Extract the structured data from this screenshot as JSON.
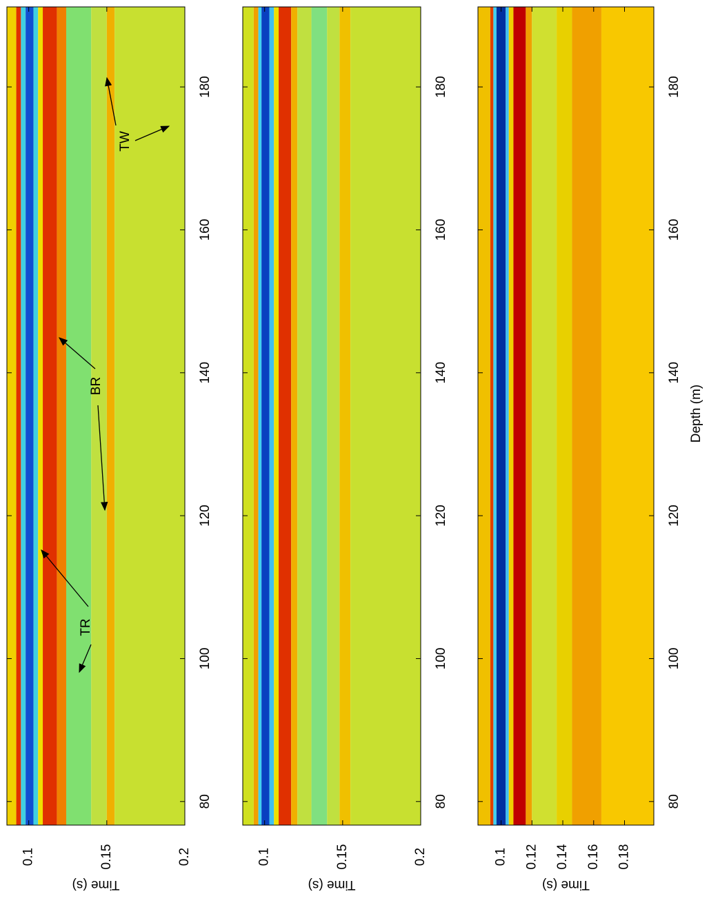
{
  "chart_data": [
    {
      "type": "heatmap",
      "ylabel": "Time (s)",
      "xlim": [
        76.7,
        191.2
      ],
      "xticks": [
        80,
        100,
        120,
        140,
        160,
        180
      ],
      "ylim": [
        0.086,
        0.2
      ],
      "yticks": [
        0.1,
        0.15,
        0.2
      ],
      "bins": [
        0.086,
        0.092,
        0.095,
        0.098,
        0.103,
        0.106,
        0.109,
        0.118,
        0.124,
        0.14,
        0.15,
        0.155,
        0.2
      ],
      "colors": [
        "#f0d000",
        "#e03000",
        "#40d0e0",
        "#1050d0",
        "#40d0e0",
        "#f0e000",
        "#e03000",
        "#f08000",
        "#80e070",
        "#c0e040",
        "#f0b000",
        "#c8e030"
      ],
      "annotations": [
        {
          "text": "TR"
        },
        {
          "text": "BR"
        },
        {
          "text": "TW"
        }
      ]
    },
    {
      "type": "heatmap",
      "ylabel": "Time (s)",
      "xlim": [
        76.7,
        191.2
      ],
      "xticks": [
        80,
        100,
        120,
        140,
        160,
        180
      ],
      "ylim": [
        0.086,
        0.2
      ],
      "yticks": [
        0.1,
        0.15,
        0.2
      ],
      "bins": [
        0.086,
        0.093,
        0.096,
        0.098,
        0.103,
        0.106,
        0.109,
        0.117,
        0.121,
        0.13,
        0.14,
        0.148,
        0.155,
        0.2
      ],
      "colors": [
        "#d0e020",
        "#f0a000",
        "#40d0f0",
        "#0840c0",
        "#40c0f0",
        "#f0e000",
        "#e03000",
        "#f0b000",
        "#c0e040",
        "#80e080",
        "#c0e040",
        "#f0c000",
        "#c8e030"
      ]
    },
    {
      "type": "heatmap",
      "ylabel": "Time (s)",
      "xlabel": "Depth (m)",
      "xlim": [
        76.7,
        191.2
      ],
      "xticks": [
        80,
        100,
        120,
        140,
        160,
        180
      ],
      "ylim": [
        0.085,
        0.199
      ],
      "yticks": [
        0.1,
        0.12,
        0.14,
        0.16,
        0.18
      ],
      "bins": [
        0.085,
        0.093,
        0.095,
        0.097,
        0.103,
        0.105,
        0.108,
        0.116,
        0.12,
        0.136,
        0.146,
        0.165,
        0.199
      ],
      "colors": [
        "#f0c000",
        "#e04000",
        "#40d0f0",
        "#0030a0",
        "#40c0f0",
        "#f0d000",
        "#c00000",
        "#f0a000",
        "#d0e030",
        "#e8d000",
        "#f0a000",
        "#f8c800"
      ]
    }
  ]
}
